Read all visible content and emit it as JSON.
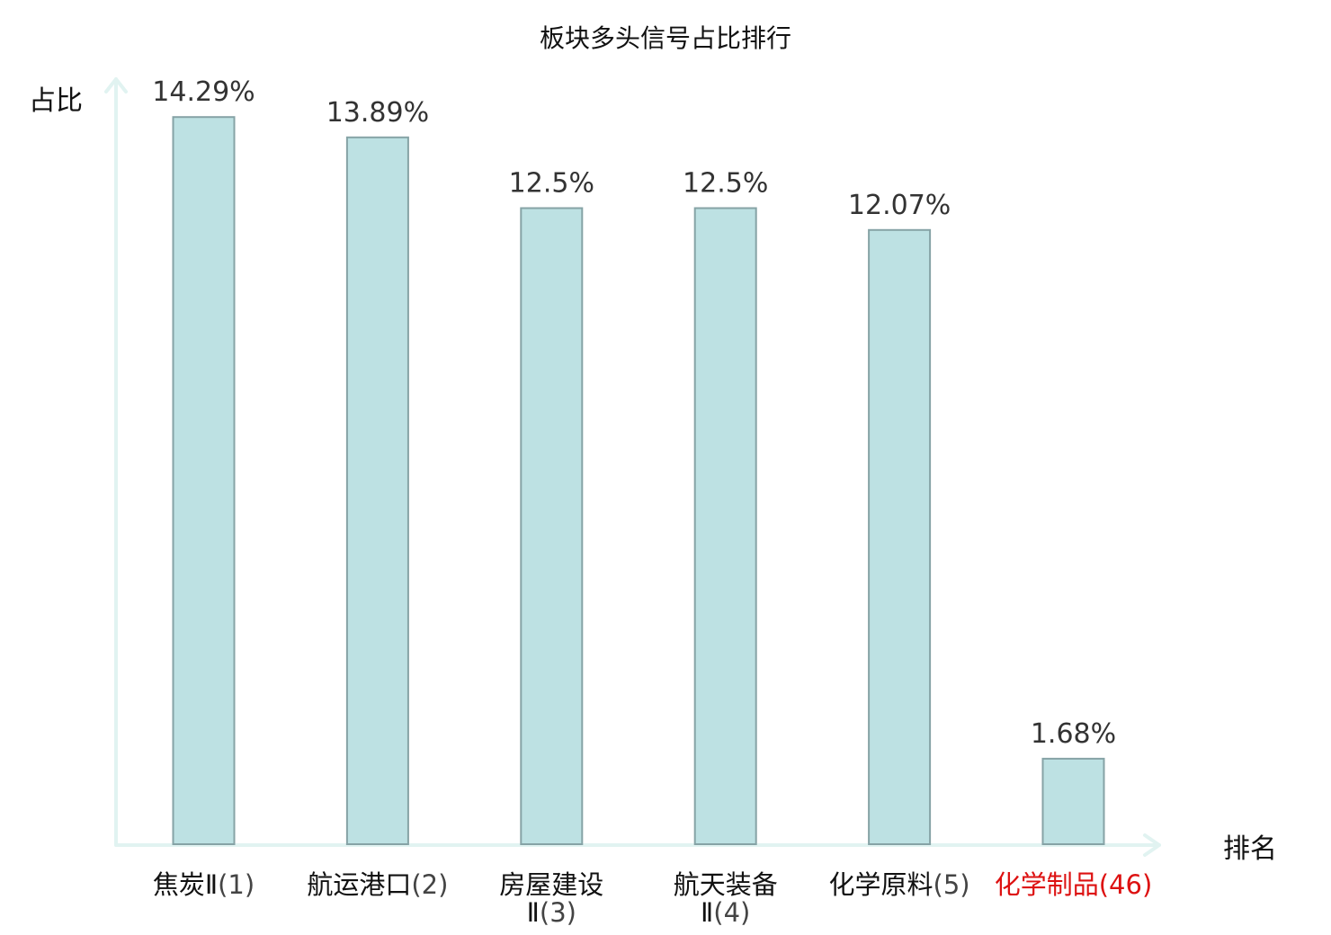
{
  "chart_data": {
    "type": "bar",
    "title": "板块多头信号占比排行",
    "ylabel": "占比",
    "xlabel": "排名",
    "ylim": [
      0,
      15
    ],
    "grid": false,
    "categories": [
      {
        "name": "焦炭Ⅱ",
        "rank": "(1)",
        "highlight": false
      },
      {
        "name": "航运港口",
        "rank": "(2)",
        "highlight": false
      },
      {
        "name": "房屋建设",
        "name_line2": "Ⅱ",
        "rank": "(3)",
        "highlight": false
      },
      {
        "name": "航天装备",
        "name_line2": "Ⅱ",
        "rank": "(4)",
        "highlight": false
      },
      {
        "name": "化学原料",
        "rank": "(5)",
        "highlight": false
      },
      {
        "name": "化学制品",
        "rank": "(46)",
        "highlight": true
      }
    ],
    "values": [
      14.29,
      13.89,
      12.5,
      12.5,
      12.07,
      1.68
    ],
    "value_labels": [
      "14.29%",
      "13.89%",
      "12.5%",
      "12.5%",
      "12.07%",
      "1.68%"
    ],
    "colors": {
      "bar_fill": "#bde1e3",
      "bar_stroke": "#86a3a6",
      "axis": "#e1f3f1",
      "highlight": "#dd1111"
    }
  }
}
